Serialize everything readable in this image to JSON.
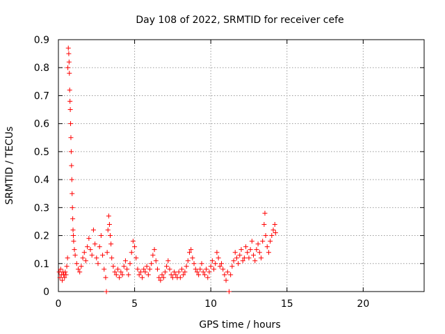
{
  "chart_data": {
    "type": "scatter",
    "title": "Day 108 of 2022, SRMTID for receiver cefe",
    "xlabel": "GPS time / hours",
    "ylabel": "SRMTID / TECUs",
    "xlim": [
      0,
      24
    ],
    "ylim": [
      0,
      0.9
    ],
    "xticks": [
      0,
      5,
      10,
      15,
      20
    ],
    "yticks": [
      0,
      0.1,
      0.2,
      0.3,
      0.4,
      0.5,
      0.6,
      0.7,
      0.8,
      0.9
    ],
    "grid": true,
    "marker": "+",
    "color": "#ff0000",
    "series": [
      {
        "name": "SRMTID",
        "points": [
          [
            0.05,
            0.07
          ],
          [
            0.1,
            0.05
          ],
          [
            0.15,
            0.08
          ],
          [
            0.2,
            0.06
          ],
          [
            0.25,
            0.04
          ],
          [
            0.3,
            0.07
          ],
          [
            0.35,
            0.06
          ],
          [
            0.4,
            0.05
          ],
          [
            0.45,
            0.07
          ],
          [
            0.5,
            0.06
          ],
          [
            0.55,
            0.09
          ],
          [
            0.6,
            0.12
          ],
          [
            0.62,
            0.8
          ],
          [
            0.65,
            0.87
          ],
          [
            0.68,
            0.85
          ],
          [
            0.7,
            0.82
          ],
          [
            0.72,
            0.78
          ],
          [
            0.74,
            0.72
          ],
          [
            0.76,
            0.68
          ],
          [
            0.78,
            0.65
          ],
          [
            0.8,
            0.6
          ],
          [
            0.82,
            0.55
          ],
          [
            0.84,
            0.5
          ],
          [
            0.86,
            0.45
          ],
          [
            0.88,
            0.4
          ],
          [
            0.9,
            0.35
          ],
          [
            0.92,
            0.3
          ],
          [
            0.94,
            0.26
          ],
          [
            0.96,
            0.22
          ],
          [
            0.98,
            0.2
          ],
          [
            1.0,
            0.18
          ],
          [
            1.05,
            0.15
          ],
          [
            1.1,
            0.13
          ],
          [
            1.2,
            0.1
          ],
          [
            1.3,
            0.08
          ],
          [
            1.4,
            0.07
          ],
          [
            1.5,
            0.09
          ],
          [
            1.6,
            0.12
          ],
          [
            1.7,
            0.14
          ],
          [
            1.8,
            0.11
          ],
          [
            1.9,
            0.16
          ],
          [
            2.0,
            0.19
          ],
          [
            2.1,
            0.15
          ],
          [
            2.2,
            0.13
          ],
          [
            2.3,
            0.22
          ],
          [
            2.4,
            0.17
          ],
          [
            2.5,
            0.12
          ],
          [
            2.6,
            0.1
          ],
          [
            2.7,
            0.16
          ],
          [
            2.8,
            0.2
          ],
          [
            2.9,
            0.13
          ],
          [
            3.0,
            0.08
          ],
          [
            3.1,
            0.05
          ],
          [
            3.15,
            0.0
          ],
          [
            3.2,
            0.14
          ],
          [
            3.25,
            0.22
          ],
          [
            3.3,
            0.27
          ],
          [
            3.35,
            0.24
          ],
          [
            3.4,
            0.2
          ],
          [
            3.45,
            0.17
          ],
          [
            3.5,
            0.12
          ],
          [
            3.6,
            0.09
          ],
          [
            3.7,
            0.07
          ],
          [
            3.8,
            0.06
          ],
          [
            3.9,
            0.08
          ],
          [
            4.0,
            0.05
          ],
          [
            4.1,
            0.07
          ],
          [
            4.2,
            0.06
          ],
          [
            4.3,
            0.09
          ],
          [
            4.4,
            0.11
          ],
          [
            4.5,
            0.08
          ],
          [
            4.6,
            0.06
          ],
          [
            4.7,
            0.1
          ],
          [
            4.8,
            0.14
          ],
          [
            4.9,
            0.18
          ],
          [
            5.0,
            0.16
          ],
          [
            5.1,
            0.12
          ],
          [
            5.2,
            0.08
          ],
          [
            5.3,
            0.06
          ],
          [
            5.4,
            0.07
          ],
          [
            5.5,
            0.05
          ],
          [
            5.6,
            0.08
          ],
          [
            5.7,
            0.07
          ],
          [
            5.8,
            0.09
          ],
          [
            5.9,
            0.06
          ],
          [
            6.0,
            0.08
          ],
          [
            6.1,
            0.1
          ],
          [
            6.2,
            0.13
          ],
          [
            6.3,
            0.15
          ],
          [
            6.4,
            0.11
          ],
          [
            6.5,
            0.08
          ],
          [
            6.6,
            0.05
          ],
          [
            6.7,
            0.04
          ],
          [
            6.8,
            0.06
          ],
          [
            6.9,
            0.05
          ],
          [
            7.0,
            0.07
          ],
          [
            7.1,
            0.09
          ],
          [
            7.2,
            0.11
          ],
          [
            7.3,
            0.08
          ],
          [
            7.4,
            0.06
          ],
          [
            7.5,
            0.05
          ],
          [
            7.6,
            0.07
          ],
          [
            7.7,
            0.06
          ],
          [
            7.8,
            0.05
          ],
          [
            7.9,
            0.07
          ],
          [
            8.0,
            0.05
          ],
          [
            8.1,
            0.08
          ],
          [
            8.2,
            0.06
          ],
          [
            8.3,
            0.07
          ],
          [
            8.4,
            0.09
          ],
          [
            8.5,
            0.11
          ],
          [
            8.6,
            0.14
          ],
          [
            8.7,
            0.15
          ],
          [
            8.8,
            0.12
          ],
          [
            8.9,
            0.1
          ],
          [
            9.0,
            0.08
          ],
          [
            9.1,
            0.07
          ],
          [
            9.2,
            0.06
          ],
          [
            9.3,
            0.08
          ],
          [
            9.4,
            0.1
          ],
          [
            9.5,
            0.07
          ],
          [
            9.6,
            0.06
          ],
          [
            9.7,
            0.08
          ],
          [
            9.8,
            0.05
          ],
          [
            9.9,
            0.07
          ],
          [
            10.0,
            0.09
          ],
          [
            10.1,
            0.11
          ],
          [
            10.2,
            0.08
          ],
          [
            10.3,
            0.1
          ],
          [
            10.4,
            0.14
          ],
          [
            10.5,
            0.12
          ],
          [
            10.6,
            0.09
          ],
          [
            10.7,
            0.1
          ],
          [
            10.8,
            0.08
          ],
          [
            10.9,
            0.06
          ],
          [
            11.0,
            0.04
          ],
          [
            11.1,
            0.07
          ],
          [
            11.2,
            0.0
          ],
          [
            11.3,
            0.06
          ],
          [
            11.4,
            0.09
          ],
          [
            11.5,
            0.11
          ],
          [
            11.6,
            0.14
          ],
          [
            11.7,
            0.12
          ],
          [
            11.8,
            0.1
          ],
          [
            11.9,
            0.13
          ],
          [
            12.0,
            0.15
          ],
          [
            12.1,
            0.11
          ],
          [
            12.2,
            0.12
          ],
          [
            12.3,
            0.16
          ],
          [
            12.4,
            0.14
          ],
          [
            12.5,
            0.12
          ],
          [
            12.6,
            0.15
          ],
          [
            12.7,
            0.18
          ],
          [
            12.8,
            0.13
          ],
          [
            12.9,
            0.11
          ],
          [
            13.0,
            0.15
          ],
          [
            13.1,
            0.17
          ],
          [
            13.2,
            0.14
          ],
          [
            13.3,
            0.12
          ],
          [
            13.4,
            0.18
          ],
          [
            13.5,
            0.24
          ],
          [
            13.55,
            0.28
          ],
          [
            13.6,
            0.2
          ],
          [
            13.7,
            0.16
          ],
          [
            13.8,
            0.14
          ],
          [
            13.9,
            0.18
          ],
          [
            14.0,
            0.2
          ],
          [
            14.1,
            0.22
          ],
          [
            14.2,
            0.24
          ],
          [
            14.25,
            0.21
          ]
        ]
      }
    ]
  }
}
